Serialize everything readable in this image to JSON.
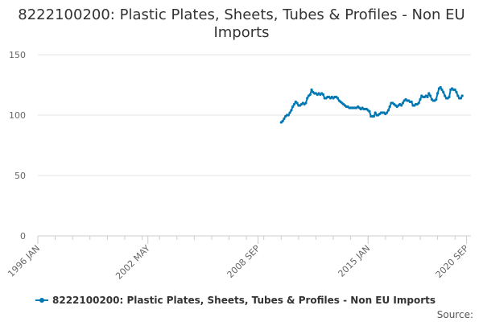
{
  "title": "8222100200: Plastic Plates, Sheets, Tubes & Profiles - Non EU Imports",
  "credit": "Source:",
  "colors": {
    "series": "#0078b4",
    "grid": "#e6e6e6",
    "axis": "#cccccc",
    "text": "#666666"
  },
  "chart_data": {
    "type": "line",
    "title": "8222100200: Plastic Plates, Sheets, Tubes & Profiles - Non EU Imports",
    "xlabel": "",
    "ylabel": "",
    "ylim": [
      0,
      150
    ],
    "xlim": [
      "1996-01",
      "2020-12"
    ],
    "y_ticks": [
      0,
      50,
      100,
      150
    ],
    "x_ticks": [
      {
        "label": "1996 JAN",
        "date": "1996-01"
      },
      {
        "label": "2002 MAY",
        "date": "2002-05"
      },
      {
        "label": "2008 SEP",
        "date": "2008-09"
      },
      {
        "label": "2015 JAN",
        "date": "2015-01"
      },
      {
        "label": "2020 SEP",
        "date": "2020-09"
      }
    ],
    "grid": true,
    "legend": "bottom-left",
    "series": [
      {
        "name": "8222100200: Plastic Plates, Sheets, Tubes & Profiles - Non EU Imports",
        "points": [
          [
            "2010-01",
            94
          ],
          [
            "2010-02",
            95
          ],
          [
            "2010-03",
            97
          ],
          [
            "2010-04",
            99
          ],
          [
            "2010-05",
            100
          ],
          [
            "2010-06",
            100
          ],
          [
            "2010-07",
            102
          ],
          [
            "2010-08",
            104
          ],
          [
            "2010-09",
            107
          ],
          [
            "2010-10",
            109
          ],
          [
            "2010-11",
            111
          ],
          [
            "2010-12",
            110
          ],
          [
            "2011-01",
            108
          ],
          [
            "2011-02",
            108
          ],
          [
            "2011-03",
            109
          ],
          [
            "2011-04",
            110
          ],
          [
            "2011-05",
            109
          ],
          [
            "2011-06",
            110
          ],
          [
            "2011-07",
            114
          ],
          [
            "2011-08",
            116
          ],
          [
            "2011-09",
            117
          ],
          [
            "2011-10",
            121
          ],
          [
            "2011-11",
            119
          ],
          [
            "2011-12",
            118
          ],
          [
            "2012-01",
            118
          ],
          [
            "2012-02",
            117
          ],
          [
            "2012-03",
            118
          ],
          [
            "2012-04",
            117
          ],
          [
            "2012-05",
            118
          ],
          [
            "2012-06",
            117
          ],
          [
            "2012-07",
            114
          ],
          [
            "2012-08",
            114
          ],
          [
            "2012-09",
            115
          ],
          [
            "2012-10",
            115
          ],
          [
            "2012-11",
            114
          ],
          [
            "2012-12",
            115
          ],
          [
            "2013-01",
            114
          ],
          [
            "2013-02",
            115
          ],
          [
            "2013-03",
            115
          ],
          [
            "2013-04",
            114
          ],
          [
            "2013-05",
            112
          ],
          [
            "2013-06",
            111
          ],
          [
            "2013-07",
            110
          ],
          [
            "2013-08",
            109
          ],
          [
            "2013-09",
            108
          ],
          [
            "2013-10",
            107
          ],
          [
            "2013-11",
            107
          ],
          [
            "2013-12",
            106
          ],
          [
            "2014-01",
            106
          ],
          [
            "2014-02",
            106
          ],
          [
            "2014-03",
            106
          ],
          [
            "2014-04",
            106
          ],
          [
            "2014-05",
            106
          ],
          [
            "2014-06",
            107
          ],
          [
            "2014-07",
            106
          ],
          [
            "2014-08",
            105
          ],
          [
            "2014-09",
            106
          ],
          [
            "2014-10",
            105
          ],
          [
            "2014-11",
            105
          ],
          [
            "2014-12",
            105
          ],
          [
            "2015-01",
            104
          ],
          [
            "2015-02",
            103
          ],
          [
            "2015-03",
            99
          ],
          [
            "2015-04",
            99
          ],
          [
            "2015-05",
            99
          ],
          [
            "2015-06",
            102
          ],
          [
            "2015-07",
            100
          ],
          [
            "2015-08",
            100
          ],
          [
            "2015-09",
            101
          ],
          [
            "2015-10",
            102
          ],
          [
            "2015-11",
            102
          ],
          [
            "2015-12",
            102
          ],
          [
            "2016-01",
            101
          ],
          [
            "2016-02",
            102
          ],
          [
            "2016-03",
            104
          ],
          [
            "2016-04",
            107
          ],
          [
            "2016-05",
            110
          ],
          [
            "2016-06",
            110
          ],
          [
            "2016-07",
            109
          ],
          [
            "2016-08",
            108
          ],
          [
            "2016-09",
            107
          ],
          [
            "2016-10",
            108
          ],
          [
            "2016-11",
            109
          ],
          [
            "2016-12",
            108
          ],
          [
            "2017-01",
            110
          ],
          [
            "2017-02",
            112
          ],
          [
            "2017-03",
            113
          ],
          [
            "2017-04",
            112
          ],
          [
            "2017-05",
            112
          ],
          [
            "2017-06",
            111
          ],
          [
            "2017-07",
            111
          ],
          [
            "2017-08",
            108
          ],
          [
            "2017-09",
            108
          ],
          [
            "2017-10",
            109
          ],
          [
            "2017-11",
            109
          ],
          [
            "2017-12",
            110
          ],
          [
            "2018-01",
            113
          ],
          [
            "2018-02",
            116
          ],
          [
            "2018-03",
            115
          ],
          [
            "2018-04",
            115
          ],
          [
            "2018-05",
            116
          ],
          [
            "2018-06",
            115
          ],
          [
            "2018-07",
            118
          ],
          [
            "2018-08",
            116
          ],
          [
            "2018-09",
            113
          ],
          [
            "2018-10",
            112
          ],
          [
            "2018-11",
            112
          ],
          [
            "2018-12",
            113
          ],
          [
            "2019-01",
            118
          ],
          [
            "2019-02",
            122
          ],
          [
            "2019-03",
            123
          ],
          [
            "2019-04",
            121
          ],
          [
            "2019-05",
            119
          ],
          [
            "2019-06",
            116
          ],
          [
            "2019-07",
            114
          ],
          [
            "2019-08",
            114
          ],
          [
            "2019-09",
            115
          ],
          [
            "2019-10",
            121
          ],
          [
            "2019-11",
            122
          ],
          [
            "2019-12",
            121
          ],
          [
            "2020-01",
            121
          ],
          [
            "2020-02",
            119
          ],
          [
            "2020-03",
            116
          ],
          [
            "2020-04",
            114
          ],
          [
            "2020-05",
            114
          ],
          [
            "2020-06",
            116
          ]
        ]
      }
    ]
  }
}
